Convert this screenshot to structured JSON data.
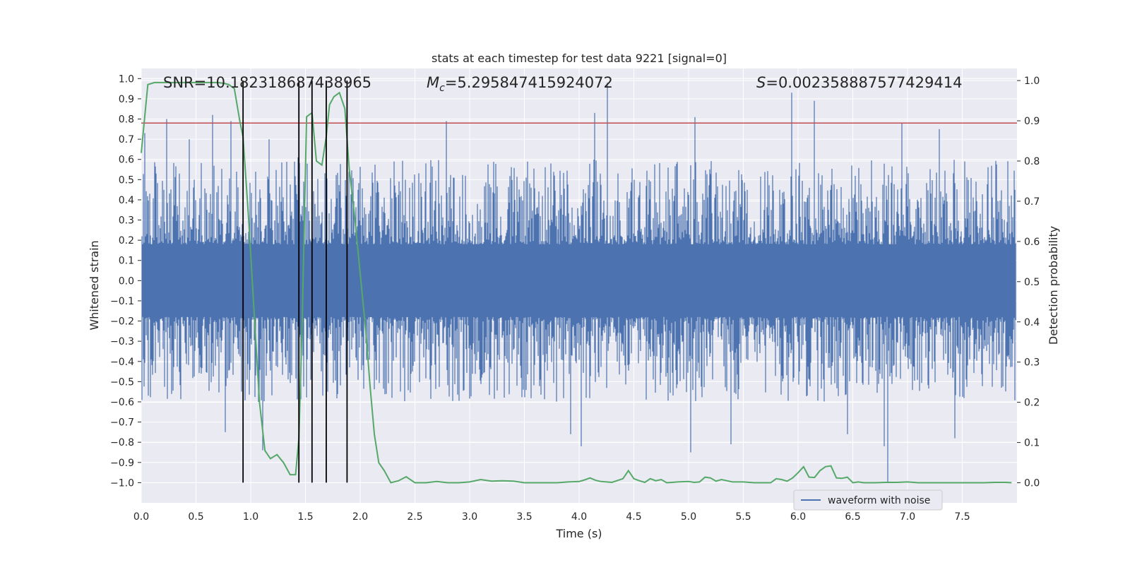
{
  "chart_data": {
    "type": "line",
    "title": "stats at each timestep for test data 9221 [signal=0]",
    "xlabel": "Time (s)",
    "ylabel_left": "Whitened strain",
    "ylabel_right": "Detection probability",
    "xlim": [
      0.0,
      8.0
    ],
    "ylim_left": [
      -1.1,
      1.05
    ],
    "ylim_right": [
      -0.05,
      1.03
    ],
    "x_ticks": [
      "0.0",
      "0.5",
      "1.0",
      "1.5",
      "2.0",
      "2.5",
      "3.0",
      "3.5",
      "4.0",
      "4.5",
      "5.0",
      "5.5",
      "6.0",
      "6.5",
      "7.0",
      "7.5"
    ],
    "y_ticks_left": [
      "1.0",
      "0.9",
      "0.8",
      "0.7",
      "0.6",
      "0.5",
      "0.4",
      "0.3",
      "0.2",
      "0.1",
      "0.0",
      "−0.1",
      "−0.2",
      "−0.3",
      "−0.4",
      "−0.5",
      "−0.6",
      "−0.7",
      "−0.8",
      "−0.9",
      "−1.0"
    ],
    "y_ticks_right": [
      "1.0",
      "0.9",
      "0.8",
      "0.7",
      "0.6",
      "0.5",
      "0.4",
      "0.3",
      "0.2",
      "0.1",
      "0.0"
    ],
    "annotations": {
      "snr": "SNR=10.182318687438965",
      "mc_symbol": "M",
      "mc_sub": "c",
      "mc_value": "=5.295847415924072",
      "s_symbol": "S",
      "s_value": "=0.002358887577429414"
    },
    "threshold_left": 0.78,
    "event_times": [
      0.93,
      1.44,
      1.56,
      1.69,
      1.88
    ],
    "legend": [
      "waveform with noise"
    ],
    "colors": {
      "waveform": "#4c72b0",
      "probability": "#55a868",
      "threshold": "#c44e52",
      "events": "#000000",
      "background": "#eaeaf2",
      "grid": "#ffffff"
    },
    "series": [
      {
        "name": "waveform with noise",
        "description": "dense whitened strain noise trace",
        "peaks_high": [
          [
            0.03,
            0.73
          ],
          [
            0.23,
            0.8
          ],
          [
            0.44,
            0.7
          ],
          [
            0.65,
            0.82
          ],
          [
            0.82,
            0.79
          ],
          [
            1.17,
            0.7
          ],
          [
            1.43,
            0.61
          ],
          [
            2.79,
            0.79
          ],
          [
            4.14,
            0.83
          ],
          [
            4.26,
            0.98
          ],
          [
            5.06,
            0.81
          ],
          [
            5.94,
            0.93
          ],
          [
            6.15,
            0.89
          ],
          [
            6.95,
            0.78
          ],
          [
            7.29,
            0.75
          ]
        ],
        "peaks_low": [
          [
            0.77,
            -0.75
          ],
          [
            1.11,
            -0.84
          ],
          [
            3.92,
            -0.76
          ],
          [
            4.02,
            -0.82
          ],
          [
            5.02,
            -0.85
          ],
          [
            5.39,
            -0.81
          ],
          [
            6.45,
            -0.76
          ],
          [
            6.79,
            -0.82
          ],
          [
            6.82,
            -1.0
          ],
          [
            7.43,
            -0.78
          ]
        ]
      },
      {
        "name": "detection probability",
        "axis": "right",
        "x": [
          0.0,
          0.06,
          0.12,
          0.2,
          0.3,
          0.4,
          0.5,
          0.6,
          0.7,
          0.76,
          0.8,
          0.85,
          0.9,
          0.93,
          0.98,
          1.03,
          1.08,
          1.13,
          1.18,
          1.24,
          1.3,
          1.36,
          1.41,
          1.44,
          1.47,
          1.51,
          1.56,
          1.6,
          1.65,
          1.69,
          1.72,
          1.76,
          1.81,
          1.86,
          1.9,
          1.95,
          2.0,
          2.05,
          2.09,
          2.13,
          2.17,
          2.22,
          2.28,
          2.35,
          2.42,
          2.5,
          2.6,
          2.7,
          2.8,
          2.9,
          3.0,
          3.1,
          3.2,
          3.3,
          3.4,
          3.5,
          3.6,
          3.7,
          3.8,
          3.9,
          4.0,
          4.05,
          4.1,
          4.15,
          4.2,
          4.3,
          4.4,
          4.45,
          4.5,
          4.55,
          4.6,
          4.65,
          4.7,
          4.75,
          4.8,
          4.85,
          4.9,
          5.0,
          5.05,
          5.1,
          5.15,
          5.2,
          5.25,
          5.3,
          5.35,
          5.4,
          5.5,
          5.6,
          5.7,
          5.75,
          5.8,
          5.85,
          5.9,
          5.95,
          6.0,
          6.05,
          6.1,
          6.15,
          6.2,
          6.25,
          6.3,
          6.35,
          6.4,
          6.45,
          6.5,
          6.55,
          6.6,
          6.65,
          6.7,
          6.8,
          6.9,
          7.0,
          7.1,
          7.2,
          7.3,
          7.4,
          7.5,
          7.6,
          7.7,
          7.8,
          7.9,
          7.95
        ],
        "values": [
          0.82,
          0.99,
          0.995,
          0.995,
          0.995,
          0.995,
          0.995,
          0.995,
          0.995,
          0.993,
          0.99,
          0.98,
          0.9,
          0.86,
          0.66,
          0.43,
          0.2,
          0.08,
          0.06,
          0.07,
          0.05,
          0.02,
          0.02,
          0.11,
          0.4,
          0.91,
          0.92,
          0.8,
          0.79,
          0.86,
          0.94,
          0.96,
          0.97,
          0.93,
          0.78,
          0.66,
          0.52,
          0.38,
          0.24,
          0.12,
          0.05,
          0.03,
          0.0,
          0.005,
          0.015,
          0.0,
          0.0,
          0.003,
          0.0,
          0.0,
          0.002,
          0.008,
          0.004,
          0.005,
          0.004,
          0.0,
          0.0,
          0.0,
          0.0,
          0.002,
          0.003,
          0.007,
          0.012,
          0.006,
          0.003,
          0.001,
          0.01,
          0.03,
          0.01,
          0.005,
          0.001,
          0.01,
          0.005,
          0.008,
          0.0,
          0.001,
          0.002,
          0.003,
          0.001,
          0.002,
          0.014,
          0.012,
          0.004,
          0.008,
          0.005,
          0.002,
          0.002,
          0.0,
          0.0,
          0.0,
          0.01,
          0.008,
          0.004,
          0.012,
          0.025,
          0.04,
          0.014,
          0.013,
          0.03,
          0.04,
          0.042,
          0.012,
          0.011,
          0.014,
          0.0,
          0.002,
          0.0,
          0.0,
          0.0,
          0.001,
          0.001,
          0.002,
          0.0,
          0.0,
          0.0,
          0.0,
          0.0,
          0.0,
          0.0,
          0.001,
          0.001,
          0.0
        ]
      }
    ]
  }
}
